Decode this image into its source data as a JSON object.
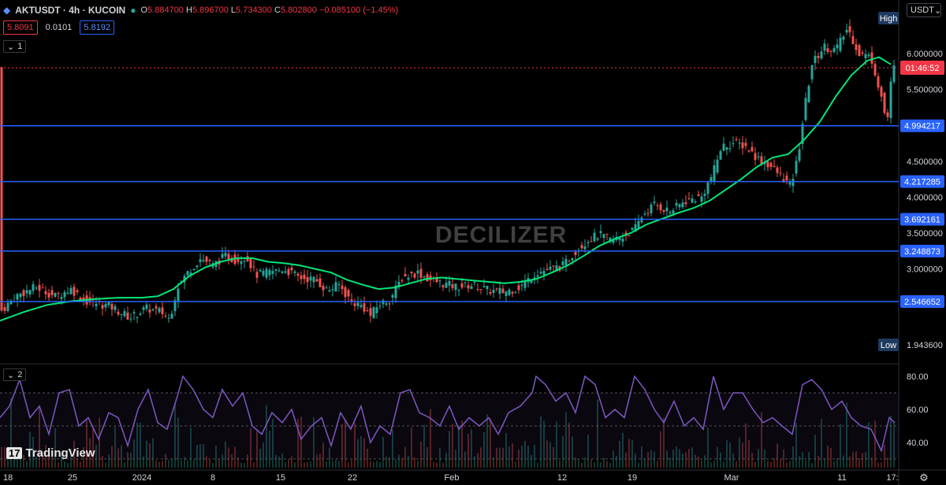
{
  "header": {
    "symbol": "AKTUSDT · 4h · KUCOIN",
    "open_label": "O",
    "open": "5.884700",
    "high_label": "H",
    "high": "5.896700",
    "low_label": "L",
    "low": "5.734300",
    "close_label": "C",
    "close": "5.802800",
    "change": "−0.085100 (−1.45%)",
    "bid": "5.8091",
    "spread": "0.0101",
    "ask": "5.8192"
  },
  "indicators": {
    "main_count": "1",
    "rsi_count": "2"
  },
  "currency": "USDT",
  "watermark": "DECILIZER",
  "brand": {
    "logo": "17",
    "name": "TradingView"
  },
  "colors": {
    "candle_up": "#26a69a",
    "candle_down": "#ef5350",
    "ma": "#00e676",
    "levels": "#2962ff",
    "rsi": "#7e57c2",
    "price_line": "#f23645"
  },
  "chart_data": {
    "type": "candlestick",
    "timeframe": "4h",
    "ma_color": "#00e676",
    "price_axis": {
      "ticks": [
        "6.000000",
        "5.500000",
        "4.500000",
        "4.000000",
        "3.500000",
        "3.000000"
      ],
      "tick_values": [
        6.0,
        5.5,
        4.5,
        4.0,
        3.5,
        3.0
      ],
      "high_label": "High",
      "low_label": "Low",
      "low_value": "1.943600",
      "current_price": 5.8028,
      "countdown": "01:46:52"
    },
    "time_axis": {
      "labels": [
        "18",
        "25",
        "2024",
        "8",
        "15",
        "22",
        "Feb",
        "12",
        "19",
        "Mar",
        "11",
        "17:"
      ]
    },
    "levels": [
      {
        "value": 4.994217,
        "label": "4.994217"
      },
      {
        "value": 4.217285,
        "label": "4.217285"
      },
      {
        "value": 3.692161,
        "label": "3.692161"
      },
      {
        "value": 3.248873,
        "label": "3.248873"
      },
      {
        "value": 2.546652,
        "label": "2.546652"
      }
    ],
    "price_path": [
      [
        0,
        2.4
      ],
      [
        20,
        2.62
      ],
      [
        45,
        2.75
      ],
      [
        70,
        2.62
      ],
      [
        90,
        2.72
      ],
      [
        110,
        2.55
      ],
      [
        140,
        2.48
      ],
      [
        165,
        2.32
      ],
      [
        185,
        2.45
      ],
      [
        205,
        2.4
      ],
      [
        215,
        2.3
      ],
      [
        225,
        2.75
      ],
      [
        240,
        2.98
      ],
      [
        255,
        3.15
      ],
      [
        270,
        3.05
      ],
      [
        285,
        3.18
      ],
      [
        300,
        3.12
      ],
      [
        312,
        3.18
      ],
      [
        325,
        2.92
      ],
      [
        340,
        2.95
      ],
      [
        360,
        3.0
      ],
      [
        380,
        2.88
      ],
      [
        400,
        2.85
      ],
      [
        415,
        2.7
      ],
      [
        430,
        2.78
      ],
      [
        445,
        2.55
      ],
      [
        460,
        2.48
      ],
      [
        470,
        2.35
      ],
      [
        480,
        2.5
      ],
      [
        495,
        2.58
      ],
      [
        510,
        2.88
      ],
      [
        530,
        2.95
      ],
      [
        545,
        2.85
      ],
      [
        560,
        2.8
      ],
      [
        580,
        2.75
      ],
      [
        600,
        2.78
      ],
      [
        620,
        2.7
      ],
      [
        640,
        2.68
      ],
      [
        660,
        2.75
      ],
      [
        680,
        2.95
      ],
      [
        700,
        3.0
      ],
      [
        715,
        3.05
      ],
      [
        730,
        3.25
      ],
      [
        745,
        3.4
      ],
      [
        760,
        3.48
      ],
      [
        775,
        3.4
      ],
      [
        790,
        3.45
      ],
      [
        805,
        3.55
      ],
      [
        815,
        3.75
      ],
      [
        830,
        3.9
      ],
      [
        850,
        3.8
      ],
      [
        870,
        3.95
      ],
      [
        890,
        4.0
      ],
      [
        905,
        4.35
      ],
      [
        915,
        4.7
      ],
      [
        930,
        4.75
      ],
      [
        945,
        4.72
      ],
      [
        960,
        4.55
      ],
      [
        975,
        4.45
      ],
      [
        990,
        4.3
      ],
      [
        1003,
        4.15
      ],
      [
        1012,
        4.55
      ],
      [
        1020,
        5.2
      ],
      [
        1030,
        5.85
      ],
      [
        1045,
        6.1
      ],
      [
        1060,
        6.05
      ],
      [
        1075,
        6.35
      ],
      [
        1090,
        6.0
      ],
      [
        1105,
        5.95
      ],
      [
        1118,
        5.4
      ],
      [
        1125,
        5.0
      ],
      [
        1132,
        5.8
      ]
    ],
    "ma_path": [
      [
        0,
        2.28
      ],
      [
        30,
        2.4
      ],
      [
        60,
        2.5
      ],
      [
        90,
        2.55
      ],
      [
        120,
        2.58
      ],
      [
        150,
        2.6
      ],
      [
        180,
        2.6
      ],
      [
        200,
        2.62
      ],
      [
        220,
        2.72
      ],
      [
        240,
        2.9
      ],
      [
        260,
        3.02
      ],
      [
        280,
        3.1
      ],
      [
        300,
        3.15
      ],
      [
        320,
        3.15
      ],
      [
        340,
        3.1
      ],
      [
        360,
        3.08
      ],
      [
        380,
        3.05
      ],
      [
        400,
        3.0
      ],
      [
        420,
        2.95
      ],
      [
        440,
        2.85
      ],
      [
        460,
        2.78
      ],
      [
        480,
        2.72
      ],
      [
        500,
        2.74
      ],
      [
        520,
        2.8
      ],
      [
        540,
        2.86
      ],
      [
        560,
        2.88
      ],
      [
        580,
        2.86
      ],
      [
        600,
        2.84
      ],
      [
        620,
        2.82
      ],
      [
        640,
        2.8
      ],
      [
        660,
        2.82
      ],
      [
        680,
        2.86
      ],
      [
        700,
        2.95
      ],
      [
        720,
        3.05
      ],
      [
        740,
        3.18
      ],
      [
        760,
        3.32
      ],
      [
        780,
        3.42
      ],
      [
        800,
        3.5
      ],
      [
        820,
        3.62
      ],
      [
        840,
        3.7
      ],
      [
        860,
        3.78
      ],
      [
        880,
        3.85
      ],
      [
        900,
        3.95
      ],
      [
        920,
        4.1
      ],
      [
        940,
        4.25
      ],
      [
        960,
        4.42
      ],
      [
        980,
        4.55
      ],
      [
        1000,
        4.6
      ],
      [
        1020,
        4.8
      ],
      [
        1040,
        5.05
      ],
      [
        1060,
        5.4
      ],
      [
        1080,
        5.7
      ],
      [
        1100,
        5.9
      ],
      [
        1115,
        5.95
      ],
      [
        1130,
        5.85
      ]
    ],
    "rsi": {
      "ticks": [
        "80.00",
        "60.00",
        "40.00"
      ],
      "tick_values": [
        80,
        60,
        40
      ],
      "path": [
        [
          0,
          55
        ],
        [
          12,
          62
        ],
        [
          25,
          78
        ],
        [
          38,
          55
        ],
        [
          50,
          62
        ],
        [
          62,
          45
        ],
        [
          75,
          70
        ],
        [
          88,
          72
        ],
        [
          100,
          50
        ],
        [
          112,
          55
        ],
        [
          125,
          42
        ],
        [
          138,
          58
        ],
        [
          150,
          55
        ],
        [
          162,
          38
        ],
        [
          175,
          60
        ],
        [
          188,
          72
        ],
        [
          200,
          52
        ],
        [
          212,
          48
        ],
        [
          225,
          68
        ],
        [
          232,
          80
        ],
        [
          245,
          72
        ],
        [
          258,
          60
        ],
        [
          270,
          55
        ],
        [
          282,
          72
        ],
        [
          295,
          62
        ],
        [
          308,
          70
        ],
        [
          320,
          50
        ],
        [
          332,
          45
        ],
        [
          345,
          58
        ],
        [
          358,
          52
        ],
        [
          370,
          60
        ],
        [
          382,
          42
        ],
        [
          395,
          50
        ],
        [
          408,
          55
        ],
        [
          420,
          38
        ],
        [
          432,
          58
        ],
        [
          445,
          48
        ],
        [
          458,
          62
        ],
        [
          470,
          40
        ],
        [
          482,
          50
        ],
        [
          495,
          45
        ],
        [
          508,
          70
        ],
        [
          520,
          72
        ],
        [
          532,
          58
        ],
        [
          545,
          55
        ],
        [
          558,
          50
        ],
        [
          570,
          62
        ],
        [
          582,
          48
        ],
        [
          595,
          55
        ],
        [
          608,
          50
        ],
        [
          620,
          55
        ],
        [
          632,
          45
        ],
        [
          645,
          58
        ],
        [
          660,
          62
        ],
        [
          675,
          70
        ],
        [
          680,
          80
        ],
        [
          692,
          75
        ],
        [
          705,
          65
        ],
        [
          718,
          70
        ],
        [
          730,
          58
        ],
        [
          742,
          80
        ],
        [
          755,
          75
        ],
        [
          768,
          55
        ],
        [
          780,
          60
        ],
        [
          792,
          55
        ],
        [
          805,
          80
        ],
        [
          818,
          72
        ],
        [
          830,
          60
        ],
        [
          842,
          52
        ],
        [
          855,
          65
        ],
        [
          868,
          50
        ],
        [
          880,
          55
        ],
        [
          892,
          48
        ],
        [
          905,
          80
        ],
        [
          918,
          60
        ],
        [
          930,
          70
        ],
        [
          942,
          70
        ],
        [
          955,
          60
        ],
        [
          968,
          52
        ],
        [
          980,
          55
        ],
        [
          992,
          50
        ],
        [
          1005,
          45
        ],
        [
          1018,
          75
        ],
        [
          1030,
          78
        ],
        [
          1042,
          72
        ],
        [
          1055,
          60
        ],
        [
          1068,
          65
        ],
        [
          1080,
          55
        ],
        [
          1092,
          50
        ],
        [
          1105,
          48
        ],
        [
          1118,
          35
        ],
        [
          1128,
          55
        ],
        [
          1135,
          52
        ]
      ]
    }
  }
}
